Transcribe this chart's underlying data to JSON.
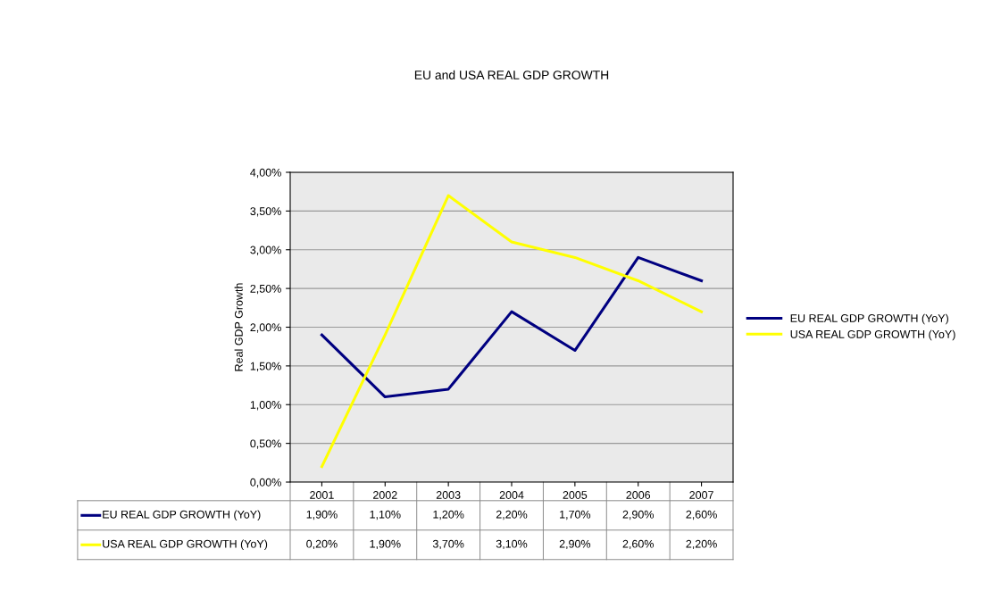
{
  "chart_data": {
    "type": "line",
    "title": "EU and USA REAL GDP GROWTH",
    "ylabel": "Real GDP Growth",
    "categories": [
      "2001",
      "2002",
      "2003",
      "2004",
      "2005",
      "2006",
      "2007"
    ],
    "series": [
      {
        "name": "EU REAL GDP GROWTH (YoY)",
        "color": "#000080",
        "values": [
          1.9,
          1.1,
          1.2,
          2.2,
          1.7,
          2.9,
          2.6
        ],
        "value_labels": [
          "1,90%",
          "1,10%",
          "1,20%",
          "2,20%",
          "1,70%",
          "2,90%",
          "2,60%"
        ]
      },
      {
        "name": "USA REAL GDP GROWTH (YoY)",
        "color": "#ffff00",
        "values": [
          0.2,
          1.9,
          3.7,
          3.1,
          2.9,
          2.6,
          2.2
        ],
        "value_labels": [
          "0,20%",
          "1,90%",
          "3,70%",
          "3,10%",
          "2,90%",
          "2,60%",
          "2,20%"
        ]
      }
    ],
    "ylim": [
      0,
      4
    ],
    "yticks": [
      {
        "value": 0,
        "label": "0,00%"
      },
      {
        "value": 0.5,
        "label": "0,50%"
      },
      {
        "value": 1,
        "label": "1,00%"
      },
      {
        "value": 1.5,
        "label": "1,50%"
      },
      {
        "value": 2,
        "label": "2,00%"
      },
      {
        "value": 2.5,
        "label": "2,50%"
      },
      {
        "value": 3,
        "label": "3,00%"
      },
      {
        "value": 3.5,
        "label": "3,50%"
      },
      {
        "value": 4,
        "label": "4,00%"
      }
    ],
    "grid": "y",
    "legend": "right",
    "marker": "none",
    "line_style": "solid"
  }
}
